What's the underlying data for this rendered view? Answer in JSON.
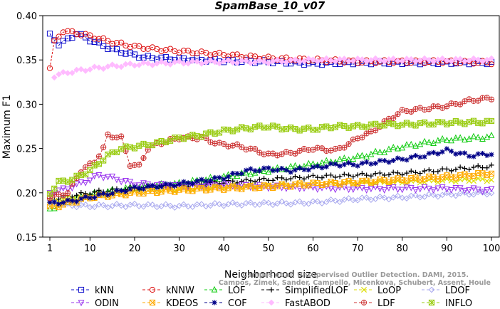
{
  "chart_data": {
    "type": "line",
    "title": "SpamBase_10_v07",
    "xlabel": "Neighborhood size",
    "ylabel": "Maximum F1",
    "xlim": [
      1,
      100
    ],
    "ylim": [
      0.15,
      0.4
    ],
    "x_ticks": [
      1,
      10,
      20,
      30,
      40,
      50,
      60,
      70,
      80,
      90,
      100
    ],
    "y_ticks": [
      "0.15",
      "0.20",
      "0.25",
      "0.30",
      "0.35",
      "0.40"
    ],
    "grid": false,
    "legend_position": "bottom",
    "watermark": [
      "Campos, Zimek, Sander, Campello, Micenkova, Schubert, Assent, Houle",
      "Campos et al. Unsupervised Outlier Detection. DAMI, 2015."
    ],
    "series": [
      {
        "name": "kNN",
        "color": "#1010cc",
        "marker": "square",
        "points": [
          [
            1,
            0.378
          ],
          [
            3,
            0.368
          ],
          [
            5,
            0.373
          ],
          [
            7,
            0.38
          ],
          [
            9,
            0.375
          ],
          [
            12,
            0.368
          ],
          [
            15,
            0.362
          ],
          [
            18,
            0.358
          ],
          [
            22,
            0.353
          ],
          [
            26,
            0.352
          ],
          [
            30,
            0.351
          ],
          [
            35,
            0.35
          ],
          [
            40,
            0.349
          ],
          [
            50,
            0.348
          ],
          [
            60,
            0.346
          ],
          [
            70,
            0.347
          ],
          [
            80,
            0.347
          ],
          [
            90,
            0.347
          ],
          [
            100,
            0.347
          ]
        ]
      },
      {
        "name": "kNNW",
        "color": "#dd1111",
        "marker": "circle",
        "points": [
          [
            1,
            0.341
          ],
          [
            2,
            0.37
          ],
          [
            4,
            0.383
          ],
          [
            7,
            0.38
          ],
          [
            10,
            0.377
          ],
          [
            15,
            0.37
          ],
          [
            20,
            0.365
          ],
          [
            25,
            0.362
          ],
          [
            30,
            0.36
          ],
          [
            35,
            0.358
          ],
          [
            40,
            0.356
          ],
          [
            50,
            0.352
          ],
          [
            60,
            0.35
          ],
          [
            70,
            0.348
          ],
          [
            80,
            0.348
          ],
          [
            90,
            0.348
          ],
          [
            100,
            0.347
          ]
        ]
      },
      {
        "name": "LOF",
        "color": "#11cc11",
        "marker": "triangle-up",
        "points": [
          [
            1,
            0.182
          ],
          [
            5,
            0.19
          ],
          [
            10,
            0.198
          ],
          [
            15,
            0.202
          ],
          [
            20,
            0.206
          ],
          [
            25,
            0.208
          ],
          [
            30,
            0.21
          ],
          [
            40,
            0.218
          ],
          [
            50,
            0.225
          ],
          [
            60,
            0.232
          ],
          [
            70,
            0.24
          ],
          [
            80,
            0.252
          ],
          [
            90,
            0.26
          ],
          [
            100,
            0.263
          ]
        ]
      },
      {
        "name": "SimplifiedLOF",
        "color": "#000000",
        "marker": "plus",
        "points": [
          [
            1,
            0.192
          ],
          [
            5,
            0.196
          ],
          [
            10,
            0.2
          ],
          [
            15,
            0.203
          ],
          [
            20,
            0.205
          ],
          [
            30,
            0.208
          ],
          [
            40,
            0.212
          ],
          [
            50,
            0.215
          ],
          [
            60,
            0.218
          ],
          [
            70,
            0.22
          ],
          [
            80,
            0.222
          ],
          [
            90,
            0.226
          ],
          [
            100,
            0.23
          ]
        ]
      },
      {
        "name": "LoOP",
        "color": "#dddd00",
        "marker": "x",
        "points": [
          [
            1,
            0.19
          ],
          [
            5,
            0.193
          ],
          [
            10,
            0.195
          ],
          [
            20,
            0.2
          ],
          [
            30,
            0.204
          ],
          [
            40,
            0.207
          ],
          [
            50,
            0.208
          ],
          [
            60,
            0.21
          ],
          [
            70,
            0.211
          ],
          [
            80,
            0.212
          ],
          [
            90,
            0.214
          ],
          [
            100,
            0.215
          ]
        ]
      },
      {
        "name": "LDOF",
        "color": "#a7a7ee",
        "marker": "diamond",
        "points": [
          [
            1,
            0.19
          ],
          [
            5,
            0.186
          ],
          [
            10,
            0.185
          ],
          [
            20,
            0.186
          ],
          [
            30,
            0.185
          ],
          [
            40,
            0.187
          ],
          [
            50,
            0.188
          ],
          [
            60,
            0.189
          ],
          [
            70,
            0.193
          ],
          [
            80,
            0.195
          ],
          [
            90,
            0.198
          ],
          [
            100,
            0.2
          ]
        ]
      },
      {
        "name": "ODIN",
        "color": "#9933ee",
        "marker": "triangle-down",
        "points": [
          [
            1,
            0.2
          ],
          [
            5,
            0.205
          ],
          [
            10,
            0.215
          ],
          [
            12,
            0.22
          ],
          [
            15,
            0.217
          ],
          [
            20,
            0.21
          ],
          [
            30,
            0.208
          ],
          [
            40,
            0.209
          ],
          [
            50,
            0.207
          ],
          [
            60,
            0.206
          ],
          [
            70,
            0.205
          ],
          [
            80,
            0.205
          ],
          [
            90,
            0.205
          ],
          [
            100,
            0.203
          ]
        ]
      },
      {
        "name": "KDEOS",
        "color": "#ffaa00",
        "marker": "square-x",
        "points": [
          [
            1,
            0.183
          ],
          [
            5,
            0.188
          ],
          [
            10,
            0.195
          ],
          [
            20,
            0.2
          ],
          [
            30,
            0.203
          ],
          [
            40,
            0.205
          ],
          [
            50,
            0.207
          ],
          [
            60,
            0.21
          ],
          [
            70,
            0.212
          ],
          [
            80,
            0.215
          ],
          [
            90,
            0.218
          ],
          [
            100,
            0.222
          ]
        ]
      },
      {
        "name": "COF",
        "color": "#000088",
        "marker": "asterisk",
        "points": [
          [
            1,
            0.188
          ],
          [
            5,
            0.19
          ],
          [
            10,
            0.195
          ],
          [
            20,
            0.205
          ],
          [
            30,
            0.21
          ],
          [
            40,
            0.217
          ],
          [
            45,
            0.225
          ],
          [
            50,
            0.227
          ],
          [
            55,
            0.225
          ],
          [
            60,
            0.228
          ],
          [
            65,
            0.232
          ],
          [
            70,
            0.232
          ],
          [
            75,
            0.235
          ],
          [
            80,
            0.238
          ],
          [
            85,
            0.242
          ],
          [
            90,
            0.248
          ],
          [
            95,
            0.242
          ],
          [
            100,
            0.244
          ]
        ]
      },
      {
        "name": "FastABOD",
        "color": "#ffbbff",
        "marker": "diamond-filled",
        "points": [
          [
            2,
            0.332
          ],
          [
            5,
            0.336
          ],
          [
            10,
            0.34
          ],
          [
            15,
            0.343
          ],
          [
            20,
            0.345
          ],
          [
            25,
            0.346
          ],
          [
            30,
            0.347
          ],
          [
            40,
            0.348
          ],
          [
            50,
            0.348
          ],
          [
            60,
            0.35
          ],
          [
            70,
            0.35
          ],
          [
            80,
            0.35
          ],
          [
            90,
            0.35
          ],
          [
            100,
            0.35
          ]
        ]
      },
      {
        "name": "LDF",
        "color": "#cc3333",
        "marker": "circle-plus",
        "points": [
          [
            1,
            0.195
          ],
          [
            5,
            0.2
          ],
          [
            8,
            0.225
          ],
          [
            11,
            0.235
          ],
          [
            13,
            0.25
          ],
          [
            14,
            0.265
          ],
          [
            17,
            0.262
          ],
          [
            19,
            0.232
          ],
          [
            21,
            0.23
          ],
          [
            23,
            0.25
          ],
          [
            25,
            0.255
          ],
          [
            30,
            0.262
          ],
          [
            35,
            0.262
          ],
          [
            39,
            0.255
          ],
          [
            43,
            0.253
          ],
          [
            47,
            0.248
          ],
          [
            50,
            0.243
          ],
          [
            55,
            0.245
          ],
          [
            60,
            0.25
          ],
          [
            65,
            0.248
          ],
          [
            68,
            0.255
          ],
          [
            70,
            0.262
          ],
          [
            73,
            0.268
          ],
          [
            77,
            0.283
          ],
          [
            80,
            0.292
          ],
          [
            85,
            0.295
          ],
          [
            90,
            0.298
          ],
          [
            95,
            0.304
          ],
          [
            100,
            0.307
          ]
        ]
      },
      {
        "name": "INFLO",
        "color": "#99cc11",
        "marker": "x-square",
        "points": [
          [
            1,
            0.2
          ],
          [
            3,
            0.212
          ],
          [
            6,
            0.215
          ],
          [
            10,
            0.225
          ],
          [
            14,
            0.242
          ],
          [
            17,
            0.25
          ],
          [
            20,
            0.252
          ],
          [
            25,
            0.256
          ],
          [
            30,
            0.262
          ],
          [
            35,
            0.265
          ],
          [
            40,
            0.27
          ],
          [
            45,
            0.273
          ],
          [
            50,
            0.275
          ],
          [
            55,
            0.272
          ],
          [
            60,
            0.272
          ],
          [
            65,
            0.275
          ],
          [
            70,
            0.275
          ],
          [
            75,
            0.277
          ],
          [
            80,
            0.277
          ],
          [
            90,
            0.279
          ],
          [
            100,
            0.28
          ]
        ]
      }
    ]
  }
}
